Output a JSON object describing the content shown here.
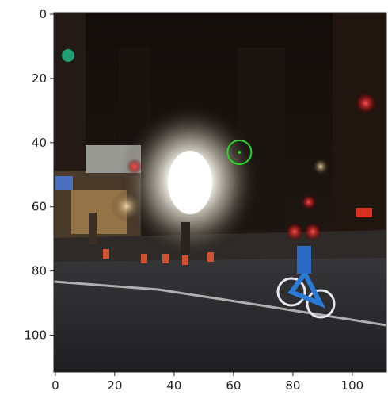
{
  "figure": {
    "x_ticks": [
      {
        "label": "0",
        "value": 0
      },
      {
        "label": "20",
        "value": 20
      },
      {
        "label": "40",
        "value": 40
      },
      {
        "label": "60",
        "value": 60
      },
      {
        "label": "80",
        "value": 80
      },
      {
        "label": "100",
        "value": 100
      }
    ],
    "y_ticks": [
      {
        "label": "0",
        "value": 0
      },
      {
        "label": "20",
        "value": 20
      },
      {
        "label": "40",
        "value": 40
      },
      {
        "label": "60",
        "value": 60
      },
      {
        "label": "80",
        "value": 80
      },
      {
        "label": "100",
        "value": 100
      }
    ],
    "x_range": [
      -0.5,
      111.5
    ],
    "y_range": [
      -0.5,
      111.5
    ],
    "marker": {
      "x": 62,
      "y": 43,
      "color": "#22dd22",
      "radius_data": 4,
      "shape": "open-circle-with-center-dot"
    },
    "scene": "night street intersection with bright lights, traffic cones and a blue bicycle"
  }
}
